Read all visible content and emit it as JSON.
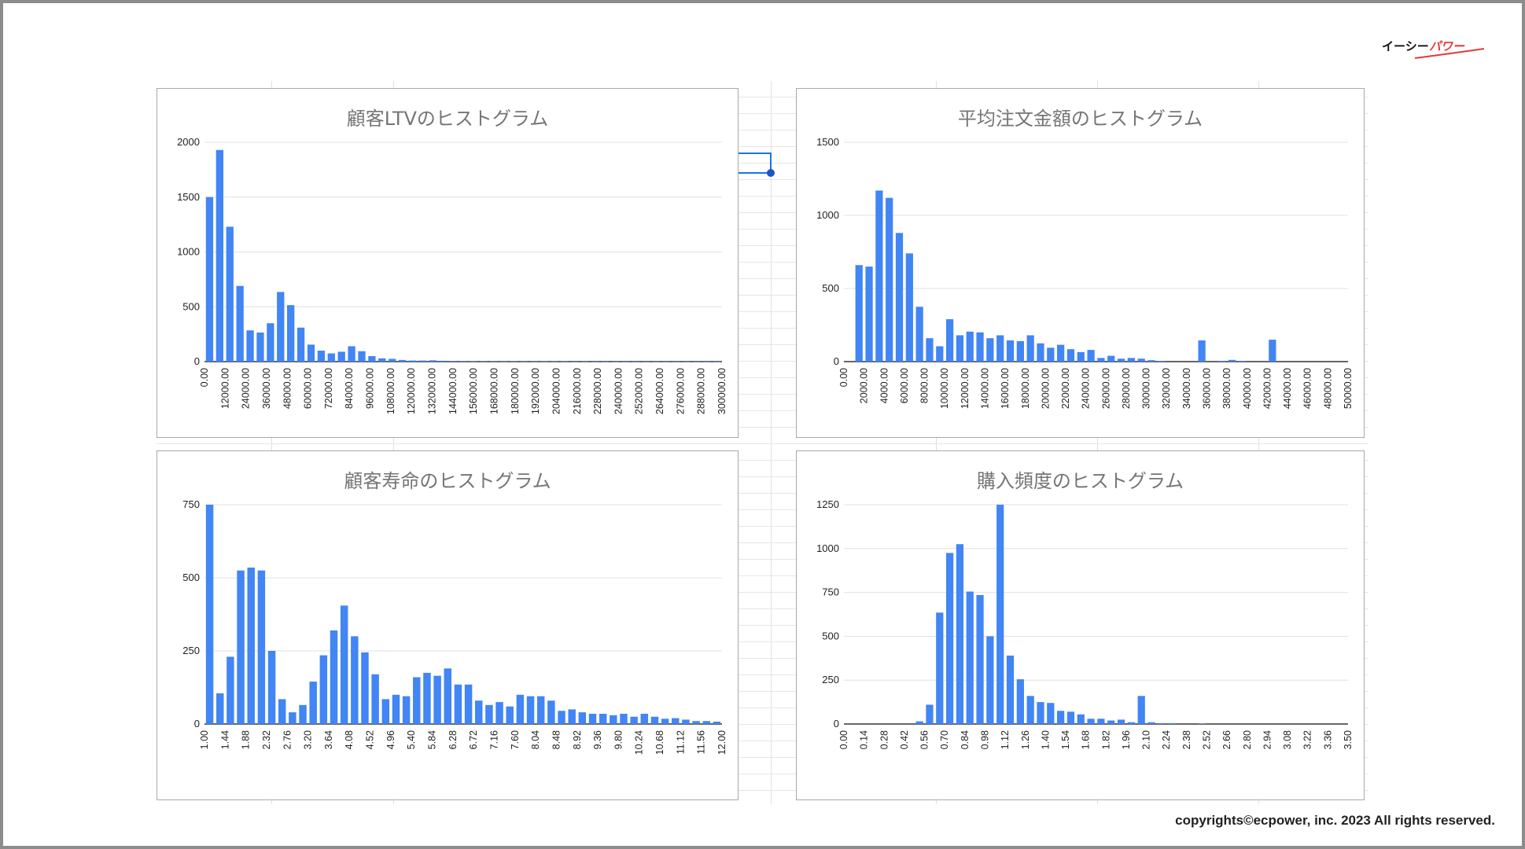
{
  "brand": {
    "logo_text": "イーシーパワー",
    "accent": "#e23b3b"
  },
  "copyright": "copyrights©ecpower, inc. 2023 All rights reserved.",
  "bar_color": "#4285f4",
  "chart_data": [
    {
      "type": "bar",
      "title": "顧客LTVのヒストグラム",
      "ylim": [
        0,
        2000
      ],
      "yticks": [
        0,
        500,
        1000,
        1500,
        2000
      ],
      "xticks": [
        "0.00",
        "12000.00",
        "24000.00",
        "36000.00",
        "48000.00",
        "60000.00",
        "72000.00",
        "84000.00",
        "96000.00",
        "108000.00",
        "120000.00",
        "132000.00",
        "144000.00",
        "156000.00",
        "168000.00",
        "180000.00",
        "192000.00",
        "204000.00",
        "216000.00",
        "228000.00",
        "240000.00",
        "252000.00",
        "264000.00",
        "276000.00",
        "288000.00",
        "300000.00"
      ],
      "values": [
        1500,
        1930,
        1230,
        690,
        285,
        265,
        350,
        635,
        515,
        310,
        155,
        100,
        75,
        90,
        140,
        95,
        50,
        30,
        25,
        15,
        10,
        10,
        12,
        8,
        5,
        5,
        4,
        3,
        3,
        2,
        3,
        2,
        2,
        2,
        2,
        2,
        1,
        2,
        1,
        1,
        1,
        1,
        1,
        1,
        1,
        1,
        1,
        1,
        1,
        1,
        1
      ],
      "grid": true,
      "legend": "none"
    },
    {
      "type": "bar",
      "title": "平均注文金額のヒストグラム",
      "ylim": [
        0,
        1500
      ],
      "yticks": [
        0,
        500,
        1000,
        1500
      ],
      "xticks": [
        "0.00",
        "2000.00",
        "4000.00",
        "6000.00",
        "8000.00",
        "10000.00",
        "12000.00",
        "14000.00",
        "16000.00",
        "18000.00",
        "20000.00",
        "22000.00",
        "24000.00",
        "26000.00",
        "28000.00",
        "30000.00",
        "32000.00",
        "34000.00",
        "36000.00",
        "38000.00",
        "40000.00",
        "42000.00",
        "44000.00",
        "46000.00",
        "48000.00",
        "50000.00"
      ],
      "values": [
        0,
        660,
        650,
        1170,
        1120,
        880,
        740,
        375,
        160,
        105,
        290,
        180,
        205,
        200,
        160,
        180,
        145,
        140,
        180,
        125,
        95,
        115,
        85,
        65,
        80,
        25,
        40,
        20,
        25,
        20,
        10,
        5,
        0,
        0,
        0,
        145,
        0,
        5,
        12,
        5,
        0,
        0,
        150,
        0,
        0,
        0,
        0,
        0,
        0,
        0
      ],
      "grid": true,
      "legend": "none"
    },
    {
      "type": "bar",
      "title": "顧客寿命のヒストグラム",
      "ylim": [
        0,
        750
      ],
      "yticks": [
        0,
        250,
        500,
        750
      ],
      "xticks": [
        "1.00",
        "1.44",
        "1.88",
        "2.32",
        "2.76",
        "3.20",
        "3.64",
        "4.08",
        "4.52",
        "4.96",
        "5.40",
        "5.84",
        "6.28",
        "6.72",
        "7.16",
        "7.60",
        "8.04",
        "8.48",
        "8.92",
        "9.36",
        "9.80",
        "10.24",
        "10.68",
        "11.12",
        "11.56",
        "12.00"
      ],
      "values": [
        750,
        105,
        230,
        525,
        535,
        525,
        250,
        85,
        40,
        65,
        145,
        235,
        320,
        405,
        300,
        245,
        170,
        85,
        100,
        95,
        160,
        175,
        165,
        190,
        135,
        135,
        80,
        65,
        75,
        60,
        100,
        95,
        95,
        80,
        45,
        50,
        40,
        35,
        35,
        30,
        35,
        25,
        35,
        25,
        18,
        20,
        15,
        10,
        10,
        8
      ],
      "grid": true,
      "legend": "none"
    },
    {
      "type": "bar",
      "title": "購入頻度のヒストグラム",
      "ylim": [
        0,
        1250
      ],
      "yticks": [
        0,
        250,
        500,
        750,
        1000,
        1250
      ],
      "xticks": [
        "0.00",
        "0.14",
        "0.28",
        "0.42",
        "0.56",
        "0.70",
        "0.84",
        "0.98",
        "1.12",
        "1.26",
        "1.40",
        "1.54",
        "1.68",
        "1.82",
        "1.96",
        "2.10",
        "2.24",
        "2.38",
        "2.52",
        "2.66",
        "2.80",
        "2.94",
        "3.08",
        "3.22",
        "3.36",
        "3.50"
      ],
      "values": [
        0,
        0,
        0,
        0,
        0,
        0,
        0,
        15,
        110,
        635,
        975,
        1025,
        755,
        735,
        500,
        1250,
        390,
        255,
        160,
        125,
        120,
        75,
        70,
        55,
        30,
        30,
        20,
        25,
        10,
        160,
        10,
        5,
        5,
        0,
        0,
        2,
        0,
        0,
        0,
        0,
        0,
        0,
        0,
        0,
        0,
        0,
        0,
        0,
        0,
        0
      ],
      "grid": true,
      "legend": "none"
    }
  ]
}
